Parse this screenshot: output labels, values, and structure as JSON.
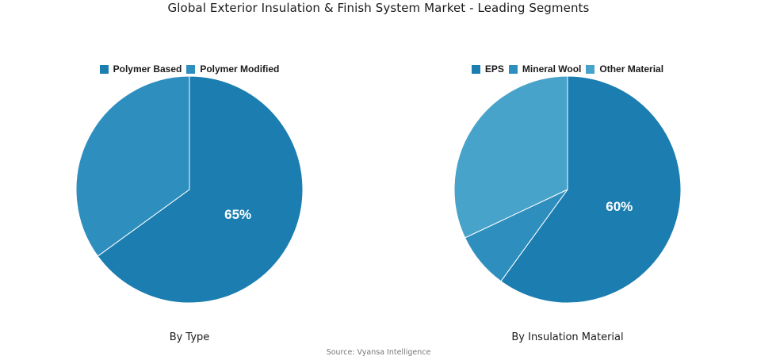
{
  "title": "Global Exterior Insulation & Finish System Market - Leading Segments",
  "source": "Source: Vyansa Intelligence",
  "chart_data": [
    {
      "type": "pie",
      "caption": "By Type",
      "slices": [
        {
          "label": "Polymer Based",
          "value": 65,
          "color": "#1b7db0",
          "shown_label": "65%"
        },
        {
          "label": "Polymer Modified",
          "value": 35,
          "color": "#2e8fbf",
          "shown_label": ""
        }
      ],
      "legend": "top-center"
    },
    {
      "type": "pie",
      "caption": "By Insulation Material",
      "slices": [
        {
          "label": "EPS",
          "value": 60,
          "color": "#1b7db0",
          "shown_label": "60%"
        },
        {
          "label": "Mineral Wool",
          "value": 8,
          "color": "#2e8fbf",
          "shown_label": ""
        },
        {
          "label": "Other Material",
          "value": 32,
          "color": "#47a3c9",
          "shown_label": ""
        }
      ],
      "legend": "top-center"
    }
  ]
}
